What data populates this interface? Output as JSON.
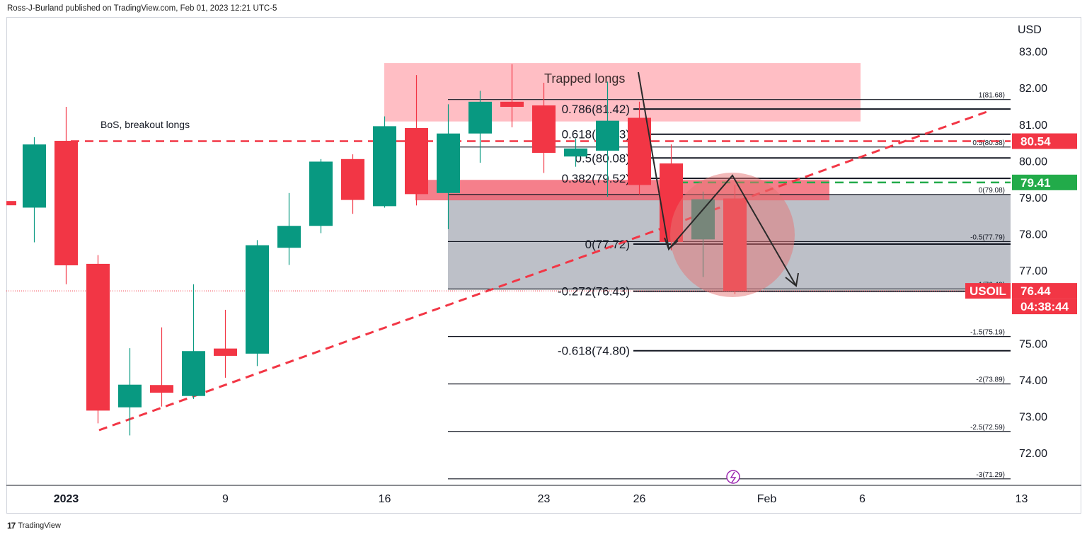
{
  "header": {
    "text": "Ross-J-Burland published on TradingView.com, Feb 01, 2023 12:21 UTC-5"
  },
  "footer": {
    "logo": "17",
    "brand": "TradingView"
  },
  "colors": {
    "up": "#089981",
    "down": "#f23645",
    "zone": "#ffb3ba",
    "range": "#b2b5be",
    "circle": "#e57373"
  },
  "chart_data": {
    "type": "candlestick",
    "symbol": "USOIL",
    "currency": "USD",
    "ylim": [
      71.2,
      83.6
    ],
    "y_ticks": [
      "83.00",
      "82.00",
      "81.00",
      "80.00",
      "79.00",
      "78.00",
      "77.00",
      "75.00",
      "74.00",
      "73.00",
      "72.00"
    ],
    "x_ticks": [
      {
        "label": "2023",
        "index": 1
      },
      {
        "label": "9",
        "index": 6
      },
      {
        "label": "16",
        "index": 11
      },
      {
        "label": "23",
        "index": 16
      },
      {
        "label": "26",
        "index": 19
      },
      {
        "label": "Feb",
        "index": 23
      },
      {
        "label": "6",
        "index": 26
      },
      {
        "label": "13",
        "index": 31
      }
    ],
    "candles": [
      {
        "o": 78.72,
        "h": 80.65,
        "l": 77.77,
        "c": 80.45
      },
      {
        "o": 80.55,
        "h": 81.48,
        "l": 76.62,
        "c": 77.14
      },
      {
        "o": 77.18,
        "h": 77.42,
        "l": 72.81,
        "c": 73.16
      },
      {
        "o": 73.25,
        "h": 74.87,
        "l": 72.48,
        "c": 73.87
      },
      {
        "o": 73.86,
        "h": 75.44,
        "l": 73.27,
        "c": 73.65
      },
      {
        "o": 73.56,
        "h": 76.62,
        "l": 73.48,
        "c": 74.79
      },
      {
        "o": 74.86,
        "h": 75.92,
        "l": 74.06,
        "c": 74.66
      },
      {
        "o": 74.72,
        "h": 77.83,
        "l": 74.38,
        "c": 77.69
      },
      {
        "o": 77.62,
        "h": 79.12,
        "l": 77.15,
        "c": 78.22
      },
      {
        "o": 78.22,
        "h": 80.05,
        "l": 78.02,
        "c": 79.98
      },
      {
        "o": 80.05,
        "h": 80.18,
        "l": 78.55,
        "c": 78.93
      },
      {
        "o": 78.76,
        "h": 81.22,
        "l": 78.72,
        "c": 80.95
      },
      {
        "o": 80.9,
        "h": 82.35,
        "l": 78.78,
        "c": 79.09
      },
      {
        "o": 79.12,
        "h": 81.55,
        "l": 78.13,
        "c": 80.75
      },
      {
        "o": 80.75,
        "h": 81.92,
        "l": 79.95,
        "c": 81.62
      },
      {
        "o": 81.62,
        "h": 82.65,
        "l": 80.92,
        "c": 81.48
      },
      {
        "o": 81.52,
        "h": 82.14,
        "l": 79.67,
        "c": 80.22
      },
      {
        "o": 80.12,
        "h": 80.61,
        "l": 79.84,
        "c": 80.34
      },
      {
        "o": 80.28,
        "h": 82.17,
        "l": 79.02,
        "c": 81.1
      },
      {
        "o": 81.18,
        "h": 81.62,
        "l": 79.08,
        "c": 79.34
      },
      {
        "o": 79.93,
        "h": 80.45,
        "l": 77.55,
        "c": 77.78
      },
      {
        "o": 77.85,
        "h": 79.16,
        "l": 76.82,
        "c": 78.95
      },
      {
        "o": 78.97,
        "h": 79.34,
        "l": 76.35,
        "c": 76.44
      }
    ],
    "price_tags": [
      {
        "value": 80.54,
        "text": "80.54",
        "color": "#f23645"
      },
      {
        "value": 79.41,
        "text": "79.41",
        "color": "#22ab4a"
      },
      {
        "value": 76.44,
        "text": "76.44",
        "symbol": "USOIL",
        "countdown": "04:38:44",
        "color": "#f23645"
      }
    ],
    "fib_large": [
      {
        "level": 81.42,
        "text": "0.786(81.42)"
      },
      {
        "level": 80.73,
        "text": "0.618(80.73)"
      },
      {
        "level": 80.08,
        "text": "0.5(80.08)"
      },
      {
        "level": 79.52,
        "text": "0.382(79.52)"
      },
      {
        "level": 77.72,
        "text": "0(77.72)"
      },
      {
        "level": 76.43,
        "text": "-0.272(76.43)"
      },
      {
        "level": 74.8,
        "text": "-0.618(74.80)"
      }
    ],
    "fib_small": [
      {
        "level": 81.68,
        "text": "1(81.68)"
      },
      {
        "level": 80.38,
        "text": "0.5(80.38)"
      },
      {
        "level": 79.08,
        "text": "0(79.08)"
      },
      {
        "level": 77.79,
        "text": "-0.5(77.79)"
      },
      {
        "level": 76.49,
        "text": "-1(76.49)"
      },
      {
        "level": 75.19,
        "text": "-1.5(75.19)"
      },
      {
        "level": 73.89,
        "text": "-2(73.89)"
      },
      {
        "level": 72.59,
        "text": "-2.5(72.59)"
      },
      {
        "level": 71.29,
        "text": "-3(71.29)"
      }
    ],
    "annotations": {
      "bos_label": "BoS, breakout longs",
      "bos_level": 80.54,
      "trapped_label": "Trapped longs",
      "trapped_zone": [
        81.08,
        82.68
      ],
      "demand_zone": [
        78.92,
        79.48
      ],
      "gray_range": [
        76.49,
        79.08
      ],
      "green_level": 79.41,
      "current_level": 76.44
    }
  }
}
